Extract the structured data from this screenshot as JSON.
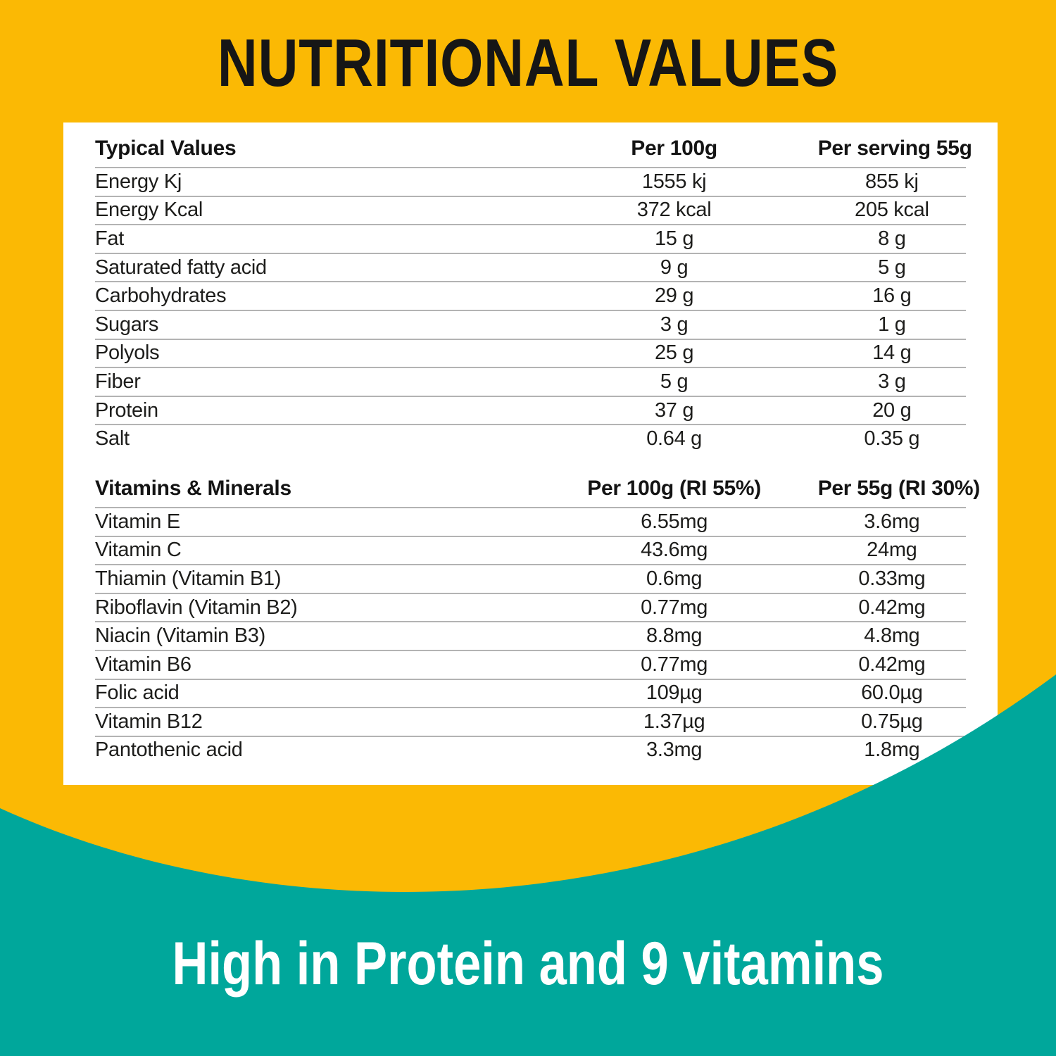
{
  "title": "NUTRITIONAL VALUES",
  "tagline": "High in Protein and 9 vitamins",
  "colors": {
    "background_yellow": "#FBB904",
    "teal": "#00A79B",
    "card_white": "#FFFFFF",
    "text_dark": "#1D1D1B",
    "divider_gray": "#B3B3B3"
  },
  "table": {
    "sections": [
      {
        "header": [
          "Typical Values",
          "Per 100g",
          "Per serving 55g"
        ],
        "rows": [
          [
            "Energy Kj",
            "1555 kj",
            "855 kj"
          ],
          [
            "Energy Kcal",
            "372 kcal",
            "205 kcal"
          ],
          [
            "Fat",
            "15 g",
            "8 g"
          ],
          [
            "Saturated fatty acid",
            "9 g",
            "5 g"
          ],
          [
            "Carbohydrates",
            "29 g",
            "16 g"
          ],
          [
            "Sugars",
            "3 g",
            "1 g"
          ],
          [
            "Polyols",
            "25 g",
            "14 g"
          ],
          [
            "Fiber",
            "5 g",
            "3 g"
          ],
          [
            "Protein",
            "37 g",
            "20 g"
          ],
          [
            "Salt",
            "0.64 g",
            "0.35 g"
          ]
        ]
      },
      {
        "header": [
          "Vitamins & Minerals",
          "Per 100g (RI 55%)",
          "Per 55g (RI 30%)"
        ],
        "rows": [
          [
            "Vitamin E",
            "6.55mg",
            "3.6mg"
          ],
          [
            "Vitamin C",
            "43.6mg",
            "24mg"
          ],
          [
            "Thiamin (Vitamin B1)",
            "0.6mg",
            "0.33mg"
          ],
          [
            "Riboflavin (Vitamin B2)",
            "0.77mg",
            "0.42mg"
          ],
          [
            "Niacin (Vitamin B3)",
            "8.8mg",
            "4.8mg"
          ],
          [
            "Vitamin B6",
            "0.77mg",
            "0.42mg"
          ],
          [
            "Folic acid",
            "109µg",
            "60.0µg"
          ],
          [
            "Vitamin B12",
            "1.37µg",
            "0.75µg"
          ],
          [
            "Pantothenic acid",
            "3.3mg",
            "1.8mg"
          ]
        ]
      }
    ]
  }
}
